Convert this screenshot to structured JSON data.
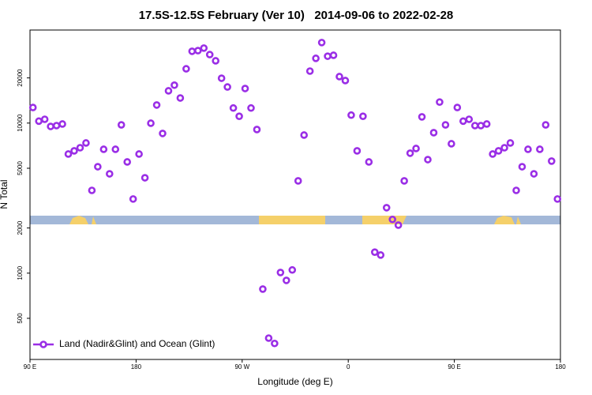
{
  "chart_data": {
    "type": "scatter",
    "title": "17.5S-12.5S February (Ver 10)   2014-09-06 to 2022-02-28",
    "x_label": "Longitude (deg E)",
    "y_label": "N Total",
    "log_y": true,
    "legend_position": "bottom left",
    "xlim": [
      90,
      540
    ],
    "ylim": [
      266,
      41700
    ],
    "xticks": [
      {
        "value": 90,
        "label": "90 E"
      },
      180,
      {
        "value": 270,
        "label": "90 W"
      },
      {
        "value": 360,
        "label": "0"
      },
      {
        "value": 450,
        "label": "90 E"
      },
      {
        "value": 540,
        "label": "180"
      }
    ],
    "yticks": [
      500,
      1000,
      2000,
      5000,
      10000,
      20000
    ],
    "series": [
      {
        "name": "Land (Nadir&Glint) and Ocean (Glint)",
        "color": "#9a2ee6",
        "x": [
          92.5,
          97.5,
          102.5,
          107.5,
          112.5,
          117.5,
          122.5,
          127.5,
          132.5,
          137.5,
          142.5,
          147.5,
          152.5,
          157.5,
          162.5,
          167.5,
          172.5,
          177.5,
          182.5,
          187.5,
          192.5,
          197.5,
          202.5,
          207.5,
          212.5,
          217.5,
          222.5,
          227.5,
          232.5,
          237.5,
          242.5,
          247.5,
          252.5,
          257.5,
          262.5,
          267.5,
          272.5,
          277.5,
          282.5,
          287.5,
          292.5,
          297.5,
          302.5,
          307.5,
          312.5,
          317.5,
          322.5,
          327.5,
          332.5,
          337.5,
          342.5,
          347.5,
          352.5,
          357.5,
          362.5,
          367.5,
          372.5,
          377.5,
          382.5,
          387.5,
          392.5,
          397.5,
          402.5,
          407.5,
          412.5,
          417.5,
          422.5,
          427.5,
          432.5,
          437.5,
          442.5,
          447.5,
          452.5,
          457.5,
          462.5,
          467.5,
          472.5,
          477.5,
          482.5,
          487.5,
          492.5,
          497.5,
          502.5,
          507.5,
          512.5,
          517.5,
          522.5,
          527.5,
          532.5,
          537.5
        ],
        "values": [
          12700,
          10300,
          10600,
          9500,
          9620,
          9860,
          6220,
          6530,
          6850,
          7370,
          3560,
          5120,
          6690,
          4590,
          6690,
          9730,
          5510,
          3120,
          6220,
          4320,
          9980,
          13200,
          8530,
          16400,
          17900,
          14700,
          23000,
          30100,
          30400,
          31600,
          28600,
          26000,
          19900,
          17400,
          12600,
          11100,
          17000,
          12600,
          9060,
          783,
          369,
          340,
          1010,
          895,
          1050,
          4120,
          8320,
          22200,
          27000,
          34400,
          27900,
          28300,
          20400,
          19200,
          11300,
          6530,
          11100,
          5510,
          1380,
          1320,
          2730,
          2280,
          2090,
          4120,
          6300,
          6770,
          11000,
          5710,
          8630,
          13800,
          9730,
          7280,
          12700,
          10300,
          10600,
          9620,
          9620,
          9860,
          6220,
          6530,
          6850,
          7370,
          3560,
          5120,
          6690,
          4590,
          6690,
          9730,
          5580,
          3120
        ]
      }
    ]
  }
}
